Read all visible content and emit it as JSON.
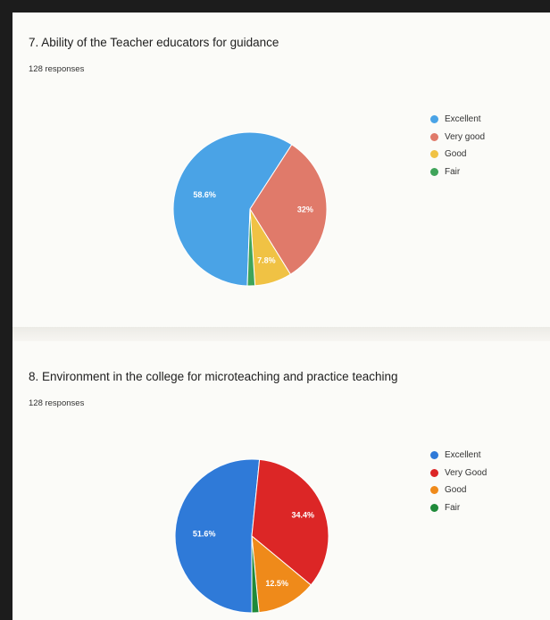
{
  "charts": [
    {
      "title": "7. Ability of the Teacher educators for guidance",
      "responses": "128 responses"
    },
    {
      "title": "8. Environment in the college for microteaching and practice teaching",
      "responses": "128 responses"
    }
  ],
  "chart_data": [
    {
      "type": "pie",
      "title": "7. Ability of the Teacher educators for guidance",
      "categories": [
        "Excellent",
        "Very good",
        "Good",
        "Fair"
      ],
      "values": [
        58.6,
        32,
        7.8,
        1.6
      ],
      "labels": [
        "58.6%",
        "32%",
        "7.8%",
        ""
      ],
      "colors": [
        "#4aa3e6",
        "#e07a6a",
        "#f0c244",
        "#3fa45a"
      ],
      "legend_position": "right"
    },
    {
      "type": "pie",
      "title": "8. Environment in the college for microteaching and practice teaching",
      "categories": [
        "Excellent",
        "Very Good",
        "Good",
        "Fair"
      ],
      "values": [
        51.6,
        34.4,
        12.5,
        1.5
      ],
      "labels": [
        "51.6%",
        "34.4%",
        "12.5%",
        ""
      ],
      "colors": [
        "#2f7ad8",
        "#dc2626",
        "#ef8a1a",
        "#1f8a3a"
      ],
      "legend_position": "right"
    }
  ]
}
